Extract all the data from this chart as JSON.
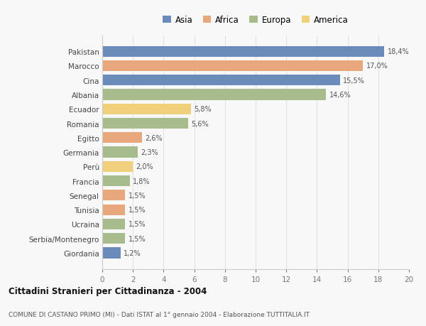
{
  "countries": [
    "Pakistan",
    "Marocco",
    "Cina",
    "Albania",
    "Ecuador",
    "Romania",
    "Egitto",
    "Germania",
    "Perù",
    "Francia",
    "Senegal",
    "Tunisia",
    "Ucraina",
    "Serbia/Montenegro",
    "Giordania"
  ],
  "values": [
    18.4,
    17.0,
    15.5,
    14.6,
    5.8,
    5.6,
    2.6,
    2.3,
    2.0,
    1.8,
    1.5,
    1.5,
    1.5,
    1.5,
    1.2
  ],
  "labels": [
    "18,4%",
    "17,0%",
    "15,5%",
    "14,6%",
    "5,8%",
    "5,6%",
    "2,6%",
    "2,3%",
    "2,0%",
    "1,8%",
    "1,5%",
    "1,5%",
    "1,5%",
    "1,5%",
    "1,2%"
  ],
  "continents": [
    "Asia",
    "Africa",
    "Asia",
    "Europa",
    "America",
    "Europa",
    "Africa",
    "Europa",
    "America",
    "Europa",
    "Africa",
    "Africa",
    "Europa",
    "Europa",
    "Asia"
  ],
  "colors": {
    "Asia": "#6b8cba",
    "Africa": "#e8a87c",
    "Europa": "#a8bb8c",
    "America": "#f0d07a"
  },
  "title_main": "Cittadini Stranieri per Cittadinanza - 2004",
  "title_sub": "COMUNE DI CASTANO PRIMO (MI) - Dati ISTAT al 1° gennaio 2004 - Elaborazione TUTTITALIA.IT",
  "xlim": [
    0,
    20
  ],
  "xticks": [
    0,
    2,
    4,
    6,
    8,
    10,
    12,
    14,
    16,
    18,
    20
  ],
  "background_color": "#f8f8f8",
  "bar_height": 0.75
}
